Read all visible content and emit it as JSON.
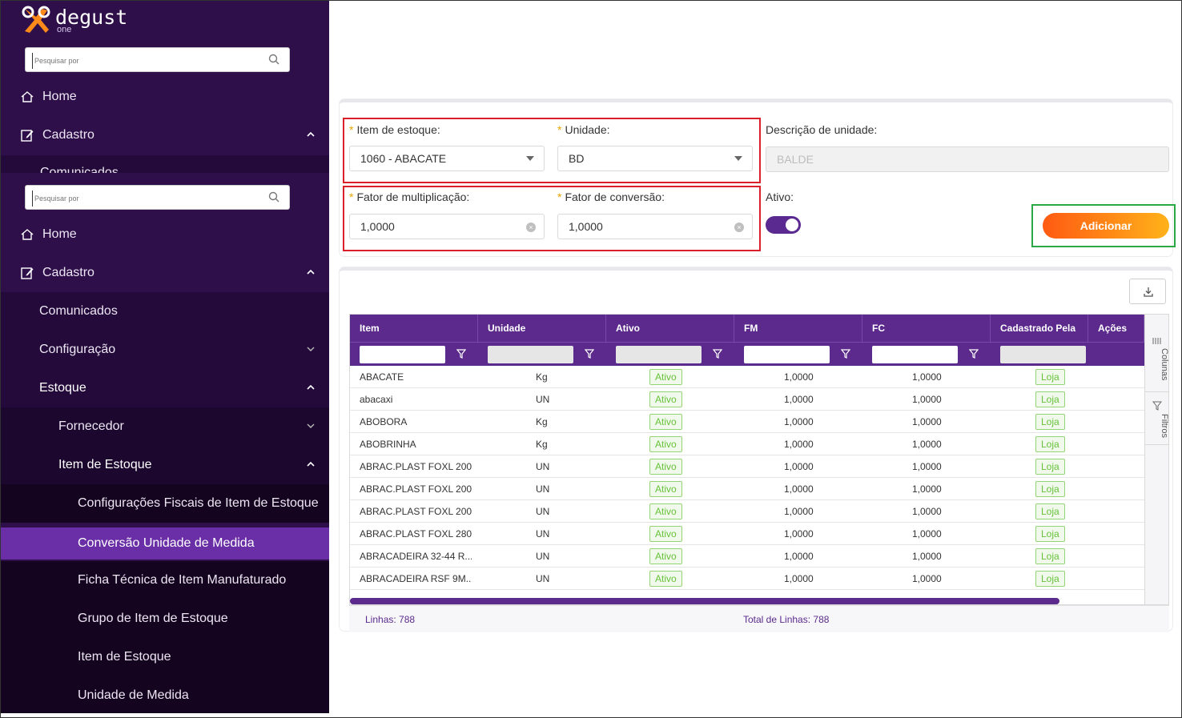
{
  "sidebar": {
    "logo_text": "degust",
    "logo_sub": "one",
    "search_placeholder": "Pesquisar por",
    "ghost_text": "Comunicados",
    "top": {
      "home": "Home",
      "cadastro": "Cadastro"
    },
    "main": {
      "home": "Home",
      "cadastro": "Cadastro",
      "comunicados": "Comunicados",
      "configuracao": "Configuração",
      "estoque": "Estoque",
      "fornecedor": "Fornecedor",
      "item_estoque": "Item de Estoque",
      "sub_items": [
        "Configurações Fiscais de Item de Estoque",
        "Conversão Unidade de Medida",
        "Ficha Técnica de Item Manufaturado",
        "Grupo de Item de Estoque",
        "Item de Estoque",
        "Unidade de Medida"
      ]
    }
  },
  "form": {
    "item_label": "Item de estoque",
    "item_value": "1060 - ABACATE",
    "unidade_label": "Unidade",
    "unidade_value": "BD",
    "descricao_label": "Descrição de unidade",
    "descricao_value": "BALDE",
    "fm_label": "Fator de multiplicação",
    "fm_value": "1,0000",
    "fc_label": "Fator de conversão",
    "fc_value": "1,0000",
    "ativo_label": "Ativo",
    "required_mark": "*",
    "colon": ":",
    "add_button": "Adicionar",
    "clear_glyph": "×"
  },
  "grid": {
    "headers": [
      "Item",
      "Unidade",
      "Ativo",
      "FM",
      "FC",
      "Cadastrado Pela",
      "Ações"
    ],
    "rows": [
      {
        "item": "ABACATE",
        "unidade": "Kg",
        "ativo": "Ativo",
        "fm": "1,0000",
        "fc": "1,0000",
        "cadastrado": "Loja"
      },
      {
        "item": "abacaxi",
        "unidade": "UN",
        "ativo": "Ativo",
        "fm": "1,0000",
        "fc": "1,0000",
        "cadastrado": "Loja"
      },
      {
        "item": "ABOBORA",
        "unidade": "Kg",
        "ativo": "Ativo",
        "fm": "1,0000",
        "fc": "1,0000",
        "cadastrado": "Loja"
      },
      {
        "item": "ABOBRINHA",
        "unidade": "Kg",
        "ativo": "Ativo",
        "fm": "1,0000",
        "fc": "1,0000",
        "cadastrado": "Loja"
      },
      {
        "item": "ABRAC.PLAST FOXL 200...",
        "unidade": "UN",
        "ativo": "Ativo",
        "fm": "1,0000",
        "fc": "1,0000",
        "cadastrado": "Loja"
      },
      {
        "item": "ABRAC.PLAST FOXL 200...",
        "unidade": "UN",
        "ativo": "Ativo",
        "fm": "1,0000",
        "fc": "1,0000",
        "cadastrado": "Loja"
      },
      {
        "item": "ABRAC.PLAST FOXL 200...",
        "unidade": "UN",
        "ativo": "Ativo",
        "fm": "1,0000",
        "fc": "1,0000",
        "cadastrado": "Loja"
      },
      {
        "item": "ABRAC.PLAST FOXL 280...",
        "unidade": "UN",
        "ativo": "Ativo",
        "fm": "1,0000",
        "fc": "1,0000",
        "cadastrado": "Loja"
      },
      {
        "item": "ABRACADEIRA 32-44 R...",
        "unidade": "UN",
        "ativo": "Ativo",
        "fm": "1,0000",
        "fc": "1,0000",
        "cadastrado": "Loja"
      },
      {
        "item": "ABRACADEIRA RSF 9M...",
        "unidade": "UN",
        "ativo": "Ativo",
        "fm": "1,0000",
        "fc": "1,0000",
        "cadastrado": "Loja"
      }
    ],
    "side_colunas": "Colunas",
    "side_filtros": "Filtros",
    "footer_lines": "Linhas: 788",
    "footer_total": "Total de Linhas: 788"
  }
}
